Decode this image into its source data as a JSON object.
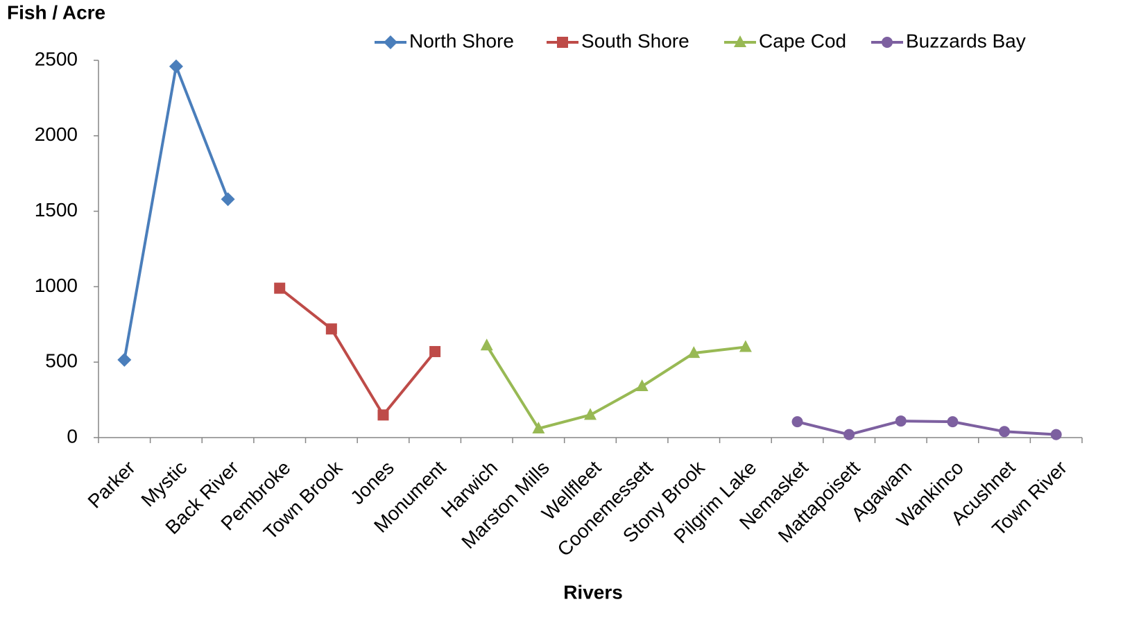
{
  "chart_data": {
    "type": "line",
    "y_label": "Fish / Acre",
    "x_label": "Rivers",
    "categories": [
      "Parker",
      "Mystic",
      "Back River",
      "Pembroke",
      "Town Brook",
      "Jones",
      "Monument",
      "Harwich",
      "Marston Mills",
      "Wellfleet",
      "Coonemessett",
      "Stony Brook",
      "Pilgrim Lake",
      "Nemasket",
      "Mattapoisett",
      "Agawam",
      "Wankinco",
      "Acushnet",
      "Town River"
    ],
    "series": [
      {
        "name": "North Shore",
        "color": "#4a7ebb",
        "marker": "diamond",
        "values": [
          515,
          2460,
          1580,
          null,
          null,
          null,
          null,
          null,
          null,
          null,
          null,
          null,
          null,
          null,
          null,
          null,
          null,
          null,
          null
        ]
      },
      {
        "name": "South Shore",
        "color": "#be4b48",
        "marker": "square",
        "values": [
          null,
          null,
          null,
          990,
          720,
          150,
          570,
          null,
          null,
          null,
          null,
          null,
          null,
          null,
          null,
          null,
          null,
          null,
          null
        ]
      },
      {
        "name": "Cape Cod",
        "color": "#98b954",
        "marker": "triangle",
        "values": [
          null,
          null,
          null,
          null,
          null,
          null,
          null,
          610,
          60,
          150,
          340,
          560,
          600,
          null,
          null,
          null,
          null,
          null,
          null
        ]
      },
      {
        "name": "Buzzards Bay",
        "color": "#7d60a0",
        "marker": "circle",
        "values": [
          null,
          null,
          null,
          null,
          null,
          null,
          null,
          null,
          null,
          null,
          null,
          null,
          null,
          105,
          20,
          110,
          105,
          40,
          20
        ]
      }
    ],
    "ylim": [
      0,
      2500
    ],
    "yticks": [
      0,
      500,
      1000,
      1500,
      2000,
      2500
    ],
    "grid": false,
    "legend": "top"
  }
}
